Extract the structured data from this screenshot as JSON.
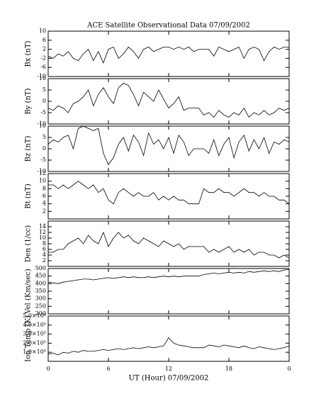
{
  "chart_data": [
    {
      "type": "line",
      "title": "ACE Satellite Observational Data   07/09/2002",
      "ylabel": "Bx (nT)",
      "color": "#000000",
      "xlim": [
        0,
        24
      ],
      "ylim": [
        -10,
        10
      ],
      "yticks": [
        -10,
        -6,
        -2,
        2,
        6,
        10
      ],
      "x": [
        0,
        0.5,
        1,
        1.5,
        2,
        2.5,
        3,
        3.5,
        4,
        4.5,
        5,
        5.5,
        6,
        6.5,
        7,
        7.5,
        8,
        8.5,
        9,
        9.5,
        10,
        10.5,
        11,
        11.5,
        12,
        12.5,
        13,
        13.5,
        14,
        14.5,
        15,
        15.5,
        16,
        16.5,
        17,
        17.5,
        18,
        18.5,
        19,
        19.5,
        20,
        20.5,
        21,
        21.5,
        22,
        22.5,
        23,
        23.5,
        24
      ],
      "values": [
        -1,
        -2,
        0,
        -1,
        1,
        -2,
        -3,
        0,
        2,
        -3,
        1,
        -4,
        2,
        3,
        -2,
        0,
        3,
        1,
        -2,
        2,
        3,
        1,
        2,
        3,
        3,
        2,
        3,
        2,
        3,
        1,
        2,
        2,
        2,
        -1,
        3,
        2,
        1,
        2,
        3,
        -2,
        2,
        3,
        2,
        -3,
        1,
        3,
        2,
        3,
        3
      ]
    },
    {
      "type": "line",
      "ylabel": "By (nT)",
      "color": "#000000",
      "xlim": [
        0,
        24
      ],
      "ylim": [
        -10,
        10
      ],
      "yticks": [
        -10,
        -5,
        0,
        5,
        10
      ],
      "x": [
        0,
        0.5,
        1,
        1.5,
        2,
        2.5,
        3,
        3.5,
        4,
        4.5,
        5,
        5.5,
        6,
        6.5,
        7,
        7.5,
        8,
        8.5,
        9,
        9.5,
        10,
        10.5,
        11,
        11.5,
        12,
        12.5,
        13,
        13.5,
        14,
        14.5,
        15,
        15.5,
        16,
        16.5,
        17,
        17.5,
        18,
        18.5,
        19,
        19.5,
        20,
        20.5,
        21,
        21.5,
        22,
        22.5,
        23,
        23.5,
        24
      ],
      "values": [
        -3,
        -4,
        -2,
        -3,
        -5,
        -1,
        0,
        2,
        5,
        -2,
        3,
        6,
        2,
        -1,
        6,
        8,
        7,
        3,
        -2,
        4,
        2,
        0,
        5,
        1,
        -3,
        -1,
        2,
        -4,
        -3,
        -3,
        -3,
        -6,
        -5,
        -7,
        -4,
        -6,
        -7,
        -5,
        -6,
        -3,
        -7,
        -5,
        -6,
        -4,
        -6,
        -5,
        -3,
        -4,
        -3
      ]
    },
    {
      "type": "line",
      "ylabel": "Bz (nT)",
      "color": "#000000",
      "xlim": [
        0,
        24
      ],
      "ylim": [
        -10,
        10
      ],
      "yticks": [
        -10,
        -5,
        0,
        5,
        10
      ],
      "x": [
        0,
        0.5,
        1,
        1.5,
        2,
        2.5,
        3,
        3.5,
        4,
        4.5,
        5,
        5.5,
        6,
        6.5,
        7,
        7.5,
        8,
        8.5,
        9,
        9.5,
        10,
        10.5,
        11,
        11.5,
        12,
        12.5,
        13,
        13.5,
        14,
        14.5,
        15,
        15.5,
        16,
        16.5,
        17,
        17.5,
        18,
        18.5,
        19,
        19.5,
        20,
        20.5,
        21,
        21.5,
        22,
        22.5,
        23,
        23.5,
        24
      ],
      "values": [
        2,
        4,
        3,
        5,
        6,
        0,
        9,
        10,
        9,
        8,
        9,
        -2,
        -7,
        -4,
        2,
        5,
        -1,
        6,
        3,
        -3,
        7,
        2,
        4,
        0,
        5,
        -2,
        6,
        3,
        -3,
        0,
        0,
        0,
        -2,
        4,
        -3,
        2,
        5,
        -4,
        3,
        6,
        -1,
        4,
        0,
        5,
        -2,
        3,
        2,
        4,
        3
      ]
    },
    {
      "type": "line",
      "ylabel": "Bt (nT)",
      "color": "#000000",
      "xlim": [
        0,
        24
      ],
      "ylim": [
        0,
        12
      ],
      "yticks": [
        2,
        4,
        6,
        8,
        10,
        12
      ],
      "x": [
        0,
        0.5,
        1,
        1.5,
        2,
        2.5,
        3,
        3.5,
        4,
        4.5,
        5,
        5.5,
        6,
        6.5,
        7,
        7.5,
        8,
        8.5,
        9,
        9.5,
        10,
        10.5,
        11,
        11.5,
        12,
        12.5,
        13,
        13.5,
        14,
        14.5,
        15,
        15.5,
        16,
        16.5,
        17,
        17.5,
        18,
        18.5,
        19,
        19.5,
        20,
        20.5,
        21,
        21.5,
        22,
        22.5,
        23,
        23.5,
        24
      ],
      "values": [
        9,
        9,
        8,
        9,
        8,
        9,
        10,
        9,
        8,
        9,
        7,
        8,
        5,
        4,
        7,
        8,
        7,
        6,
        7,
        6,
        6,
        7,
        5,
        6,
        5,
        6,
        5,
        5,
        4,
        4,
        4,
        8,
        7,
        7,
        8,
        7,
        7,
        6,
        7,
        8,
        7,
        7,
        6,
        7,
        6,
        6,
        5,
        5,
        4
      ]
    },
    {
      "type": "line",
      "ylabel": "Den (1/cc)",
      "color": "#000000",
      "xlim": [
        0,
        24
      ],
      "ylim": [
        0,
        16
      ],
      "yticks": [
        2,
        4,
        6,
        8,
        10,
        12,
        14
      ],
      "x": [
        0,
        0.5,
        1,
        1.5,
        2,
        2.5,
        3,
        3.5,
        4,
        4.5,
        5,
        5.5,
        6,
        6.5,
        7,
        7.5,
        8,
        8.5,
        9,
        9.5,
        10,
        10.5,
        11,
        11.5,
        12,
        12.5,
        13,
        13.5,
        14,
        14.5,
        15,
        15.5,
        16,
        16.5,
        17,
        17.5,
        18,
        18.5,
        19,
        19.5,
        20,
        20.5,
        21,
        21.5,
        22,
        22.5,
        23,
        23.5,
        24
      ],
      "values": [
        5,
        5,
        6,
        6,
        8,
        9,
        10,
        8,
        11,
        9,
        8,
        12,
        7,
        10,
        12,
        10,
        11,
        9,
        8,
        10,
        9,
        8,
        7,
        9,
        8,
        7,
        8,
        6,
        7,
        7,
        7,
        7,
        5,
        6,
        5,
        6,
        7,
        5,
        6,
        5,
        6,
        4,
        5,
        5,
        4,
        4,
        3,
        4,
        3
      ]
    },
    {
      "type": "line",
      "ylabel": "Vel (Km/sec)",
      "color": "#000000",
      "xlim": [
        0,
        24
      ],
      "ylim": [
        200,
        500
      ],
      "yticks": [
        200,
        250,
        300,
        350,
        400,
        450,
        500
      ],
      "x": [
        0,
        0.5,
        1,
        1.5,
        2,
        2.5,
        3,
        3.5,
        4,
        4.5,
        5,
        5.5,
        6,
        6.5,
        7,
        7.5,
        8,
        8.5,
        9,
        9.5,
        10,
        10.5,
        11,
        11.5,
        12,
        12.5,
        13,
        13.5,
        14,
        14.5,
        15,
        15.5,
        16,
        16.5,
        17,
        17.5,
        18,
        18.5,
        19,
        19.5,
        20,
        20.5,
        21,
        21.5,
        22,
        22.5,
        23,
        23.5,
        24
      ],
      "values": [
        410,
        405,
        400,
        410,
        415,
        420,
        425,
        430,
        430,
        425,
        430,
        435,
        440,
        435,
        440,
        445,
        440,
        445,
        440,
        440,
        445,
        440,
        445,
        450,
        445,
        450,
        445,
        450,
        450,
        450,
        450,
        460,
        465,
        470,
        465,
        470,
        475,
        470,
        475,
        470,
        480,
        475,
        480,
        485,
        480,
        485,
        480,
        490,
        495
      ]
    },
    {
      "type": "line",
      "ylabel": "Ion Temp (K)",
      "xlabel": "UT (Hour)   07/09/2002",
      "color": "#000000",
      "xlim": [
        0,
        24
      ],
      "ylim": [
        0,
        500000
      ],
      "yticks": [
        {
          "value": 100000,
          "label": "1.0×10⁵"
        },
        {
          "value": 200000,
          "label": "2.0×10⁵"
        },
        {
          "value": 300000,
          "label": "3.0×10⁵"
        },
        {
          "value": 400000,
          "label": "4.0×10⁵"
        },
        {
          "value": 500000,
          "label": "5.0×10⁵"
        }
      ],
      "xticks": [
        0,
        6,
        12,
        18,
        {
          "value": 24,
          "label": "0"
        }
      ],
      "x": [
        0,
        0.5,
        1,
        1.5,
        2,
        2.5,
        3,
        3.5,
        4,
        4.5,
        5,
        5.5,
        6,
        6.5,
        7,
        7.5,
        8,
        8.5,
        9,
        9.5,
        10,
        10.5,
        11,
        11.5,
        12,
        12.5,
        13,
        13.5,
        14,
        14.5,
        15,
        15.5,
        16,
        16.5,
        17,
        17.5,
        18,
        18.5,
        19,
        19.5,
        20,
        20.5,
        21,
        21.5,
        22,
        22.5,
        23,
        23.5,
        24
      ],
      "values": [
        80000,
        90000,
        70000,
        100000,
        90000,
        110000,
        100000,
        120000,
        110000,
        110000,
        120000,
        130000,
        120000,
        130000,
        140000,
        130000,
        140000,
        150000,
        140000,
        150000,
        160000,
        150000,
        160000,
        170000,
        260000,
        200000,
        180000,
        170000,
        160000,
        150000,
        150000,
        150000,
        180000,
        170000,
        160000,
        180000,
        170000,
        160000,
        150000,
        170000,
        150000,
        140000,
        160000,
        150000,
        140000,
        130000,
        140000,
        150000,
        170000
      ]
    }
  ]
}
